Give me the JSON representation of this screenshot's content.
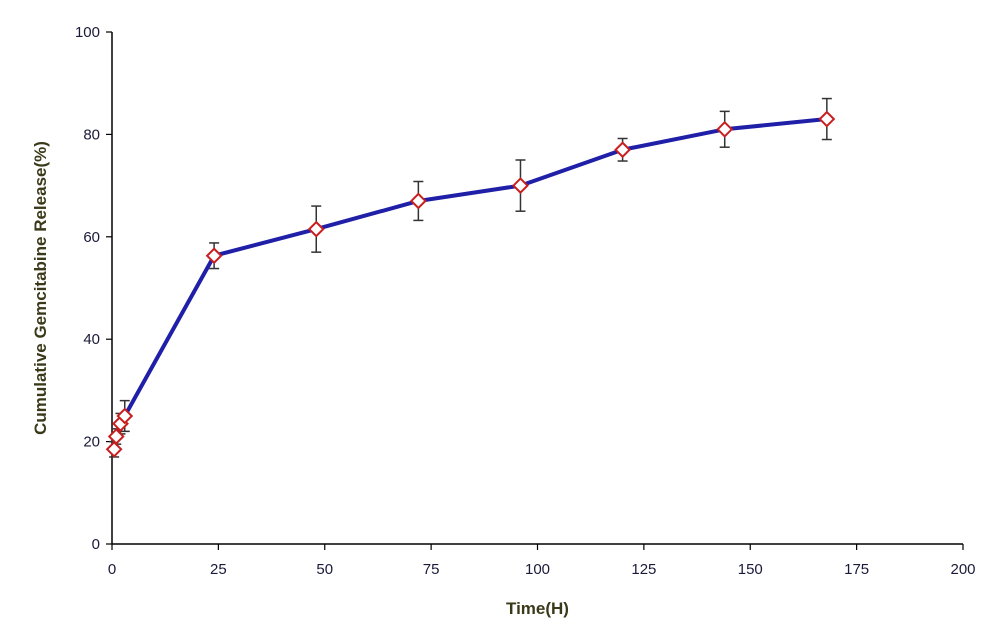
{
  "chart_data": {
    "type": "line",
    "title": "",
    "xlabel": "Time(H)",
    "ylabel": "Cumulative Gemcitabine Release(%)",
    "xlim": [
      0,
      200
    ],
    "ylim": [
      0,
      100
    ],
    "x_ticks": [
      0,
      25,
      50,
      75,
      100,
      125,
      150,
      175,
      200
    ],
    "y_ticks": [
      0,
      20,
      40,
      60,
      80,
      100
    ],
    "grid": false,
    "legend": "none",
    "colors": {
      "line": "#1f1fa8",
      "marker_edge": "#c81e1e",
      "marker_fill": "#ffffff",
      "error_bar": "#333333",
      "axis": "#000000"
    },
    "series": [
      {
        "x": [
          0.5,
          1,
          2,
          3,
          24,
          48,
          72,
          96,
          120,
          144,
          168
        ],
        "y": [
          18.5,
          21,
          23.5,
          25,
          56.3,
          61.5,
          67,
          70,
          77,
          81,
          83
        ],
        "error": [
          1.5,
          1.5,
          2,
          3,
          2.5,
          4.5,
          3.8,
          5,
          2.2,
          3.5,
          4
        ]
      }
    ]
  }
}
